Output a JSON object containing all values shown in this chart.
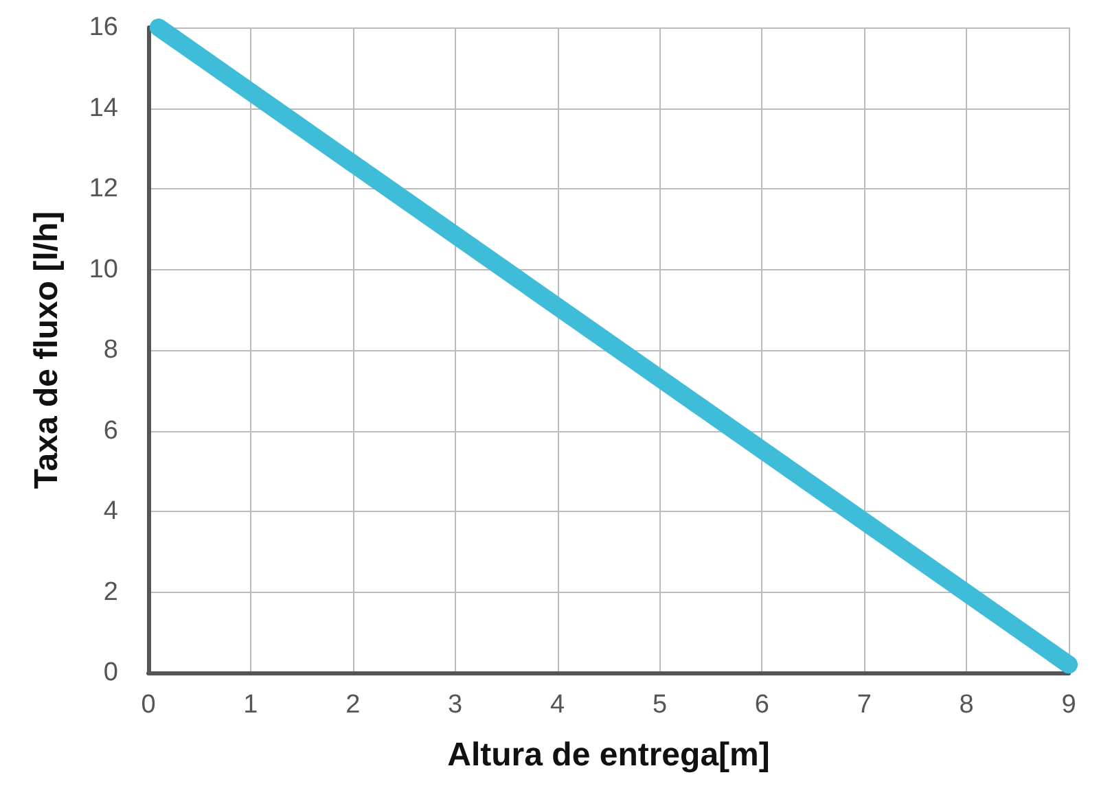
{
  "chart_data": {
    "type": "line",
    "xlabel": "Altura de entrega[m]",
    "ylabel": "Taxa de fluxo [l/h]",
    "x": [
      0.1,
      9
    ],
    "series": [
      {
        "color": "#3fbcd8",
        "values": [
          16,
          0.2
        ]
      }
    ],
    "xlim": [
      0,
      9
    ],
    "ylim": [
      0,
      16
    ],
    "xticks": [
      0,
      1,
      2,
      3,
      4,
      5,
      6,
      7,
      8,
      9
    ],
    "yticks": [
      0,
      2,
      4,
      6,
      8,
      10,
      12,
      14,
      16
    ],
    "grid": true,
    "line_style": "solid"
  }
}
